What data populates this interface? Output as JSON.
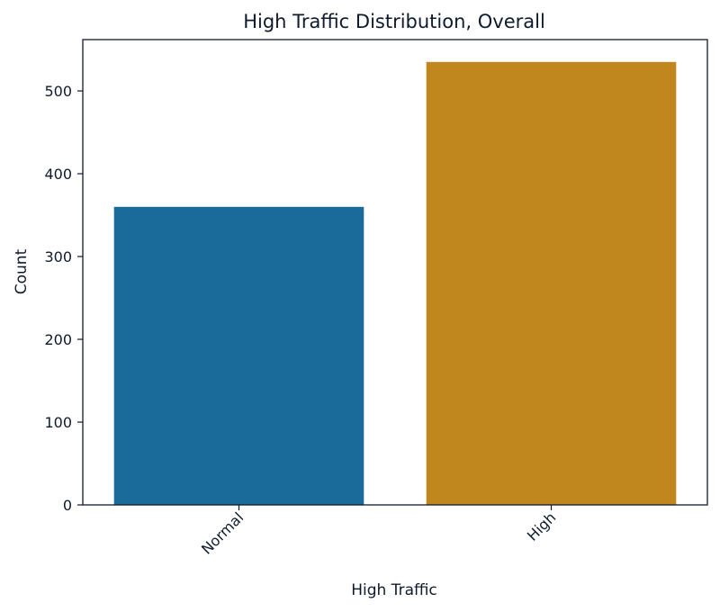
{
  "chart_data": {
    "type": "bar",
    "title": "High Traffic Distribution, Overall",
    "xlabel": "High Traffic",
    "ylabel": "Count",
    "categories": [
      "Normal",
      "High"
    ],
    "values": [
      360,
      535
    ],
    "colors": [
      "#1a6b9a",
      "#c1871f"
    ],
    "ylim": [
      0,
      562
    ],
    "yticks": [
      0,
      100,
      200,
      300,
      400,
      500
    ],
    "grid": false,
    "x_tick_rotation_deg": 45
  }
}
